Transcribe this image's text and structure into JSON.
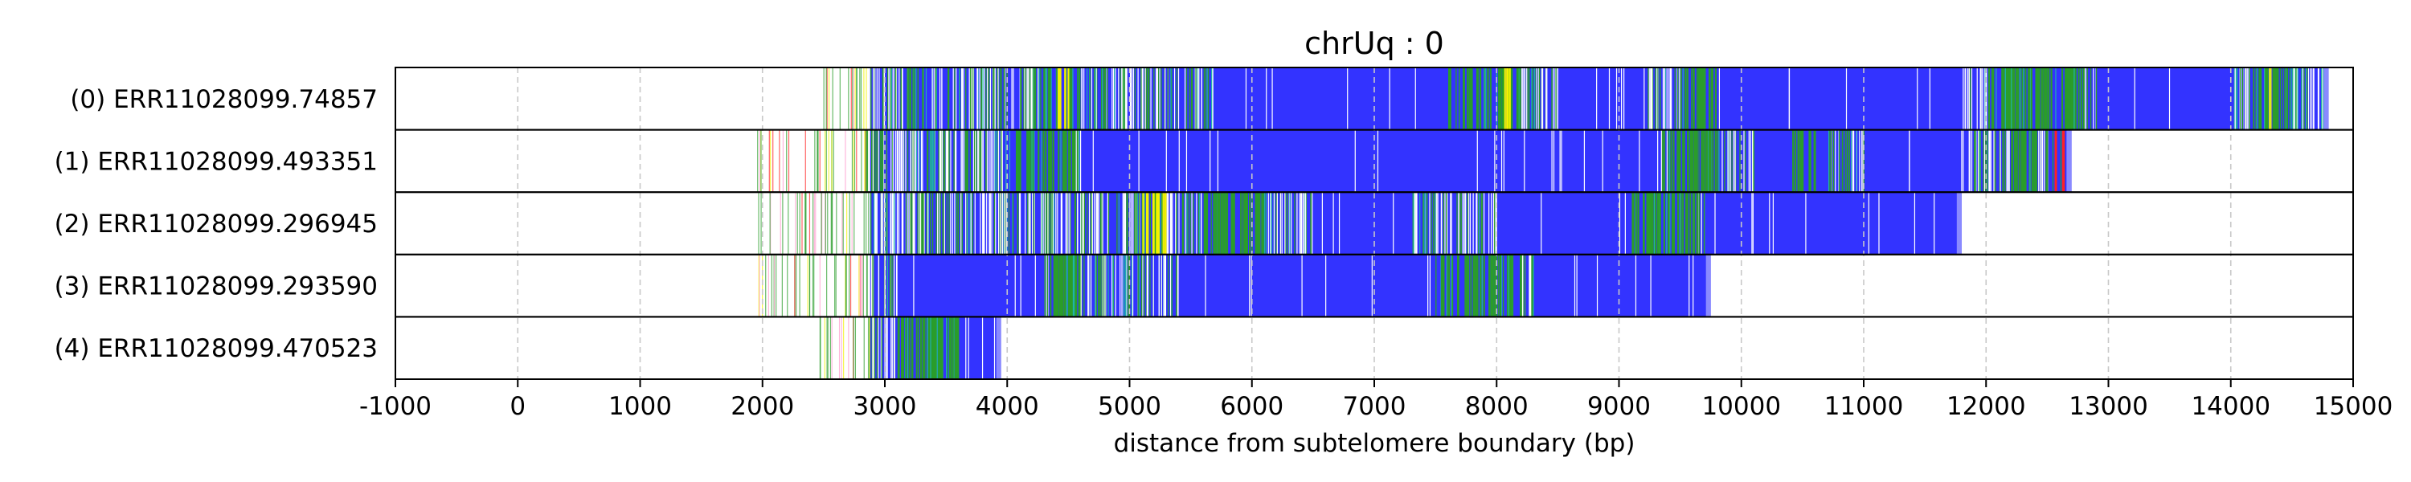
{
  "chart_data": {
    "type": "bar",
    "title": "chrUq : 0",
    "xlabel": "distance from subtelomere boundary (bp)",
    "xlim": [
      -1000,
      15000
    ],
    "xticks": [
      -1000,
      0,
      1000,
      2000,
      3000,
      4000,
      5000,
      6000,
      7000,
      8000,
      9000,
      10000,
      11000,
      12000,
      13000,
      14000,
      15000
    ],
    "grid": "vertical dashed",
    "colors": {
      "blue": "#3333ff",
      "green": "#2a9d2a",
      "yellow": "#f2f200",
      "red": "#ff2222",
      "pink": "#ff99cc",
      "teal": "#20b2aa",
      "white": "#ffffff",
      "grid": "#c8c8c8"
    },
    "reads": [
      {
        "label": "(0) ERR11028099.74857",
        "end": 14800,
        "sparse_start": 2450,
        "dense_start": 2880,
        "solid_blue": [
          [
            5700,
            7600
          ],
          [
            8500,
            9200
          ],
          [
            9800,
            11800
          ],
          [
            12900,
            14000
          ]
        ],
        "green_bands": [
          [
            4300,
            4600
          ],
          [
            7600,
            8200
          ],
          [
            9500,
            9800
          ],
          [
            12000,
            12800
          ],
          [
            14200,
            14400
          ]
        ],
        "yellow_bands": [
          [
            4400,
            4500
          ],
          [
            8050,
            8100
          ],
          [
            14300,
            14330
          ]
        ],
        "red_bands": []
      },
      {
        "label": "(1) ERR11028099.493351",
        "end": 12700,
        "sparse_start": 1950,
        "dense_start": 2880,
        "solid_blue": [
          [
            4600,
            9300
          ],
          [
            10100,
            10700
          ],
          [
            11000,
            11800
          ]
        ],
        "green_bands": [
          [
            4000,
            4550
          ],
          [
            9400,
            9800
          ],
          [
            10400,
            10600
          ],
          [
            12200,
            12400
          ]
        ],
        "yellow_bands": [],
        "red_bands": [
          [
            12550,
            12650
          ]
        ]
      },
      {
        "label": "(2) ERR11028099.296945",
        "end": 11800,
        "sparse_start": 1950,
        "dense_start": 2880,
        "solid_blue": [
          [
            6500,
            7300
          ],
          [
            8000,
            9100
          ],
          [
            9700,
            11800
          ]
        ],
        "green_bands": [
          [
            5600,
            6100
          ],
          [
            9100,
            9600
          ]
        ],
        "yellow_bands": [
          [
            5100,
            5300
          ]
        ],
        "red_bands": []
      },
      {
        "label": "(3) ERR11028099.293590",
        "end": 9750,
        "sparse_start": 1950,
        "dense_start": 2880,
        "solid_blue": [
          [
            3100,
            4300
          ],
          [
            5400,
            7500
          ],
          [
            8300,
            9750
          ]
        ],
        "green_bands": [
          [
            4350,
            4600
          ],
          [
            7500,
            8200
          ]
        ],
        "yellow_bands": [],
        "red_bands": []
      },
      {
        "label": "(4) ERR11028099.470523",
        "end": 3950,
        "sparse_start": 2400,
        "dense_start": 2880,
        "solid_blue": [
          [
            3600,
            3950
          ]
        ],
        "green_bands": [
          [
            3100,
            3600
          ]
        ],
        "yellow_bands": [],
        "red_bands": []
      }
    ]
  }
}
